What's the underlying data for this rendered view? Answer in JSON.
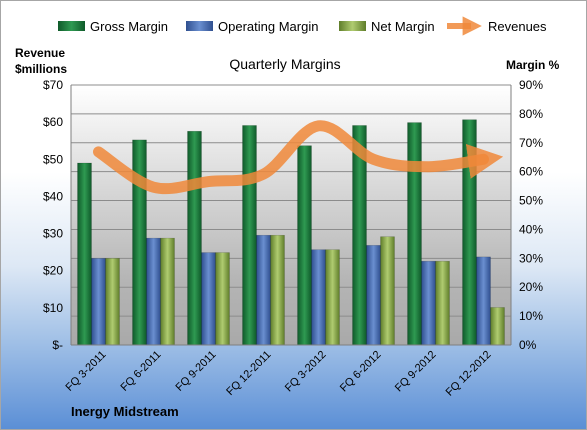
{
  "chart_data": {
    "type": "bar",
    "title": "Quarterly Margins",
    "ylabel_left": "Revenue $millions",
    "ylabel_right": "Margin %",
    "categories": [
      "FQ 3-2011",
      "FQ 6-2011",
      "FQ 9-2011",
      "FQ 12-2011",
      "FQ 3-2012",
      "FQ 6-2012",
      "FQ 9-2012",
      "FQ 12-2012"
    ],
    "left_axis": {
      "min": 0,
      "max": 70,
      "ticks": [
        "$-",
        "$10",
        "$20",
        "$30",
        "$40",
        "$50",
        "$60",
        "$70"
      ]
    },
    "right_axis": {
      "min": 0,
      "max": 90,
      "ticks": [
        "0%",
        "10%",
        "20%",
        "30%",
        "40%",
        "50%",
        "60%",
        "70%",
        "80%",
        "90%"
      ]
    },
    "series": [
      {
        "name": "Gross Margin",
        "axis": "right",
        "color": "#1e7b3c",
        "values": [
          63,
          71,
          74,
          76,
          69,
          76,
          77,
          78
        ]
      },
      {
        "name": "Operating Margin",
        "axis": "right",
        "color": "#4f74b8",
        "values": [
          30,
          37,
          32,
          38,
          33,
          34.5,
          29,
          30.5
        ]
      },
      {
        "name": "Net Margin",
        "axis": "right",
        "color": "#8fae4e",
        "values": [
          30,
          37,
          32,
          38,
          33,
          37.5,
          29,
          13
        ]
      },
      {
        "name": "Revenues",
        "axis": "left",
        "type": "line",
        "color": "#f0883a",
        "values": [
          52,
          42.5,
          44,
          46,
          59,
          50,
          48,
          50
        ]
      }
    ],
    "grid": true,
    "legend_position": "top"
  },
  "footer": {
    "company": "Inergy Midstream"
  }
}
